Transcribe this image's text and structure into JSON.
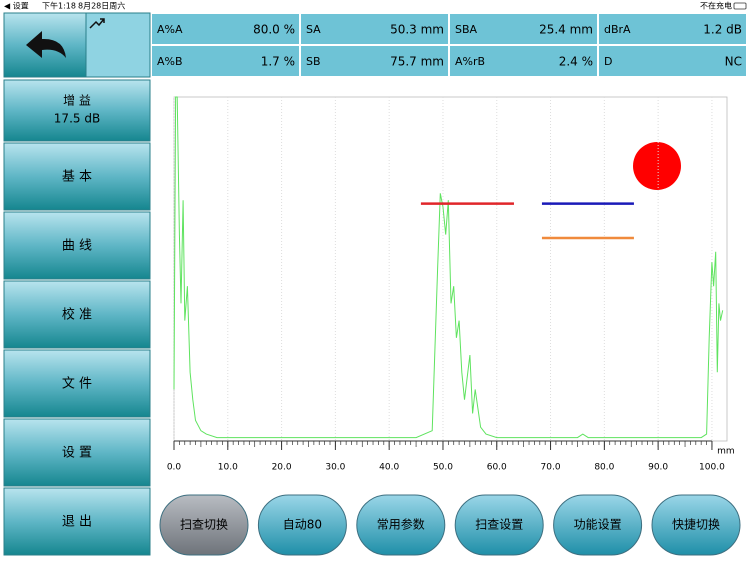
{
  "status_bar": {
    "back": "◀ 设置",
    "time": "下午1:18",
    "date": "8月28日周六",
    "charging": "不在充电"
  },
  "sidebar": {
    "gain_label": "增 益",
    "gain_value": "17.5 dB",
    "menu": [
      "基 本",
      "曲 线",
      "校 准",
      "文 件",
      "设 置",
      "退 出"
    ]
  },
  "readings": [
    {
      "label": "A%A",
      "value": "80.0 %"
    },
    {
      "label": "SA",
      "value": "50.3 mm"
    },
    {
      "label": "SBA",
      "value": "25.4 mm"
    },
    {
      "label": "dBrA",
      "value": "1.2 dB"
    },
    {
      "label": "A%B",
      "value": "1.7 %"
    },
    {
      "label": "SB",
      "value": "75.7 mm"
    },
    {
      "label": "A%rB",
      "value": "2.4 %"
    },
    {
      "label": "D",
      "value": "NC"
    }
  ],
  "bottom_buttons": [
    "扫查切换",
    "自动80",
    "常用参数",
    "扫查设置",
    "功能设置",
    "快捷切换"
  ],
  "chart_data": {
    "type": "line",
    "color": "#5fe35f",
    "x_unit": "mm",
    "x": [
      0,
      0.3,
      0.6,
      1.0,
      1.3,
      1.7,
      2.0,
      2.5,
      3.0,
      3.5,
      4.0,
      5.0,
      6,
      8,
      10,
      15,
      20,
      25,
      30,
      35,
      40,
      45,
      48,
      49,
      49.5,
      50,
      50.5,
      51,
      51.5,
      52,
      52.5,
      53,
      53.5,
      54,
      55,
      55.5,
      56,
      57,
      58,
      60,
      65,
      70,
      75,
      76,
      77,
      80,
      85,
      90,
      95,
      98,
      99,
      99.5,
      100,
      100.3,
      100.7,
      101,
      101.3,
      101.6,
      102
    ],
    "values": [
      15,
      100,
      100,
      60,
      40,
      70,
      35,
      45,
      20,
      12,
      6,
      3,
      2,
      1,
      1,
      1,
      1,
      1,
      1,
      1,
      1,
      1,
      3,
      50,
      72,
      68,
      60,
      70,
      40,
      45,
      30,
      35,
      20,
      12,
      25,
      8,
      15,
      4,
      2,
      1,
      1,
      1,
      1,
      2,
      1,
      1,
      1,
      1,
      1,
      1,
      2,
      30,
      52,
      45,
      55,
      20,
      40,
      35,
      38
    ],
    "xlim": [
      0,
      102.8
    ],
    "ylim": [
      0,
      100
    ],
    "xticks": [
      {
        "value": 0,
        "label": "0.0"
      },
      {
        "value": 10,
        "label": "10.0"
      },
      {
        "value": 20,
        "label": "20.0"
      },
      {
        "value": 30,
        "label": "30.0"
      },
      {
        "value": 40,
        "label": "40.0"
      },
      {
        "value": 50,
        "label": "50.0"
      },
      {
        "value": 60,
        "label": "60.0"
      },
      {
        "value": 70,
        "label": "70.0"
      },
      {
        "value": 80,
        "label": "80.0"
      },
      {
        "value": 90,
        "label": "90.0"
      },
      {
        "value": 100,
        "label": "100.0"
      }
    ],
    "grid": true,
    "gates": [
      {
        "color": "#e0262a",
        "start": 45.9,
        "end": 63.2,
        "level": 69
      },
      {
        "color": "#1a1ab8",
        "start": 68.4,
        "end": 85.5,
        "level": 69
      },
      {
        "color": "#f08a3c",
        "start": 68.4,
        "end": 85.5,
        "level": 59
      }
    ]
  }
}
